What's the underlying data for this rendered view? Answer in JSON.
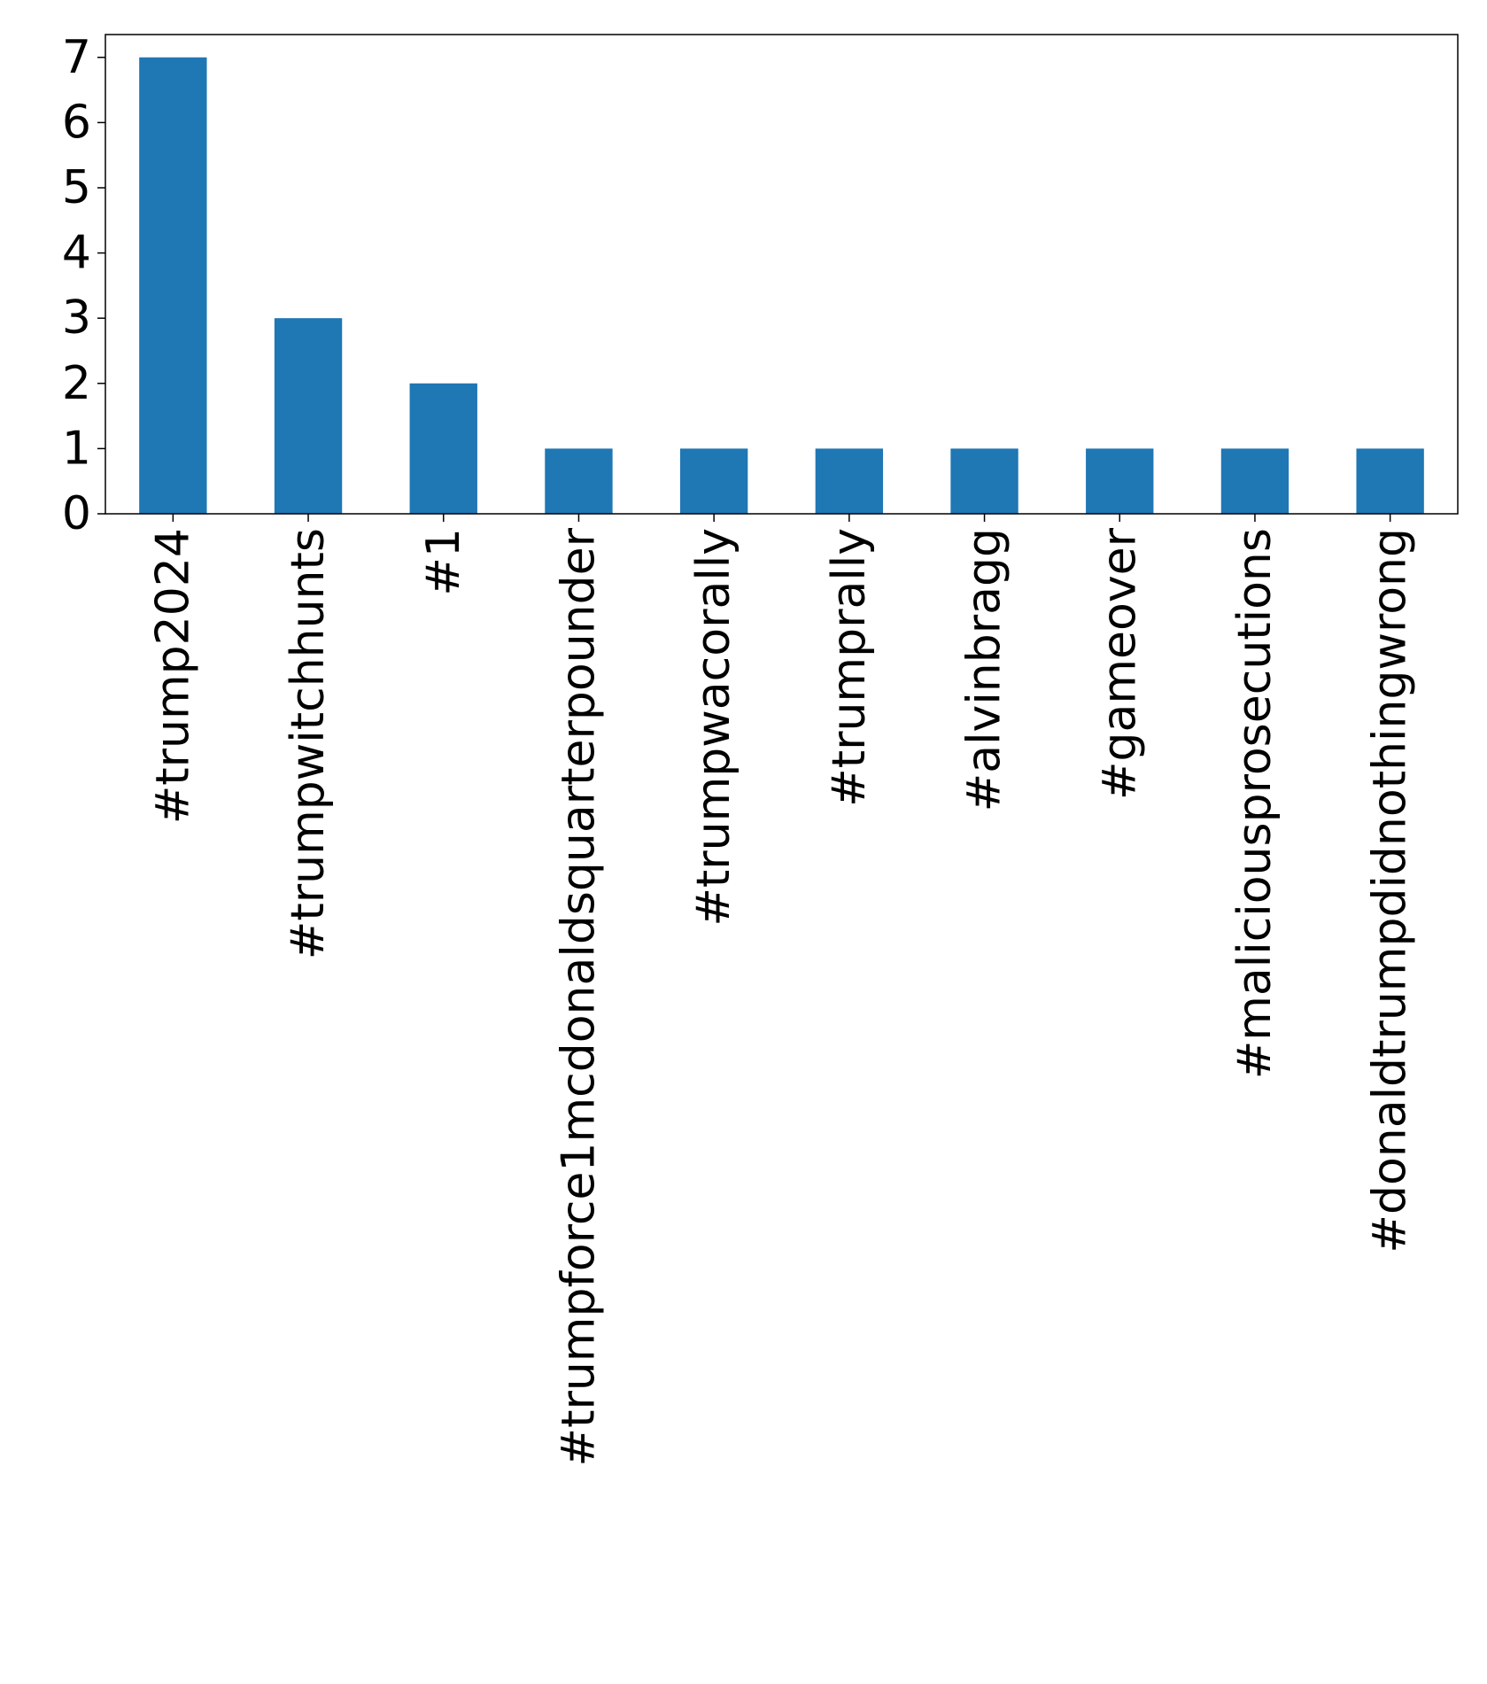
{
  "chart_data": {
    "type": "bar",
    "categories": [
      "#trump2024",
      "#trumpwitchhunts",
      "#1",
      "#trumpforce1mcdonaldsquarterpounder",
      "#trumpwacorally",
      "#trumprally",
      "#alvinbragg",
      "#gameover",
      "#maliciousprosecutions",
      "#donaldtrumpdidnothingwrong"
    ],
    "values": [
      7,
      3,
      2,
      1,
      1,
      1,
      1,
      1,
      1,
      1
    ],
    "title": "",
    "xlabel": "",
    "ylabel": "",
    "ylim": [
      0,
      7.35
    ],
    "yticks": [
      0,
      1,
      2,
      3,
      4,
      5,
      6,
      7
    ],
    "grid": false,
    "legend": "none",
    "bar_color": "#1f77b4"
  }
}
